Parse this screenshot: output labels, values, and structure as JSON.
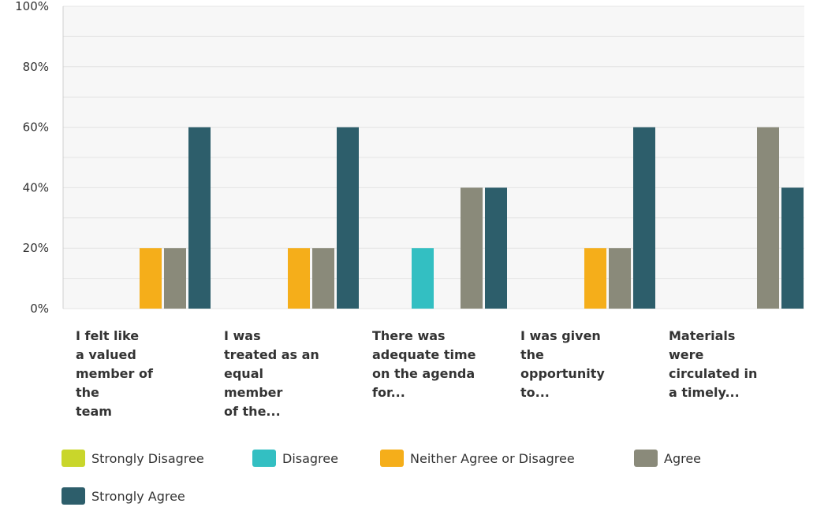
{
  "chart_data": {
    "type": "bar",
    "ylim": [
      0,
      100
    ],
    "y_ticks": [
      "0%",
      "20%",
      "40%",
      "60%",
      "80%",
      "100%"
    ],
    "grid": true,
    "legend_position": "bottom",
    "categories": [
      [
        "I felt like",
        "a valued",
        "member of",
        "the",
        "team"
      ],
      [
        "I was",
        "treated as an",
        "equal",
        "member",
        "of the..."
      ],
      [
        "There was",
        "adequate time",
        "on the agenda",
        "for..."
      ],
      [
        "I was given",
        "the",
        "opportunity",
        "to..."
      ],
      [
        "Materials",
        "were",
        "circulated in",
        "a timely..."
      ]
    ],
    "series": [
      {
        "name": "Strongly Disagree",
        "color": "#c9d62b",
        "values": [
          0,
          0,
          0,
          0,
          0
        ]
      },
      {
        "name": "Disagree",
        "color": "#33bfc2",
        "values": [
          0,
          0,
          20,
          0,
          0
        ]
      },
      {
        "name": "Neither Agree or Disagree",
        "color": "#f5ae1a",
        "values": [
          20,
          20,
          0,
          20,
          0
        ]
      },
      {
        "name": "Agree",
        "color": "#8a8a7a",
        "values": [
          20,
          20,
          40,
          20,
          60
        ]
      },
      {
        "name": "Strongly Agree",
        "color": "#2d5e6b",
        "values": [
          60,
          60,
          40,
          60,
          40
        ]
      }
    ]
  }
}
